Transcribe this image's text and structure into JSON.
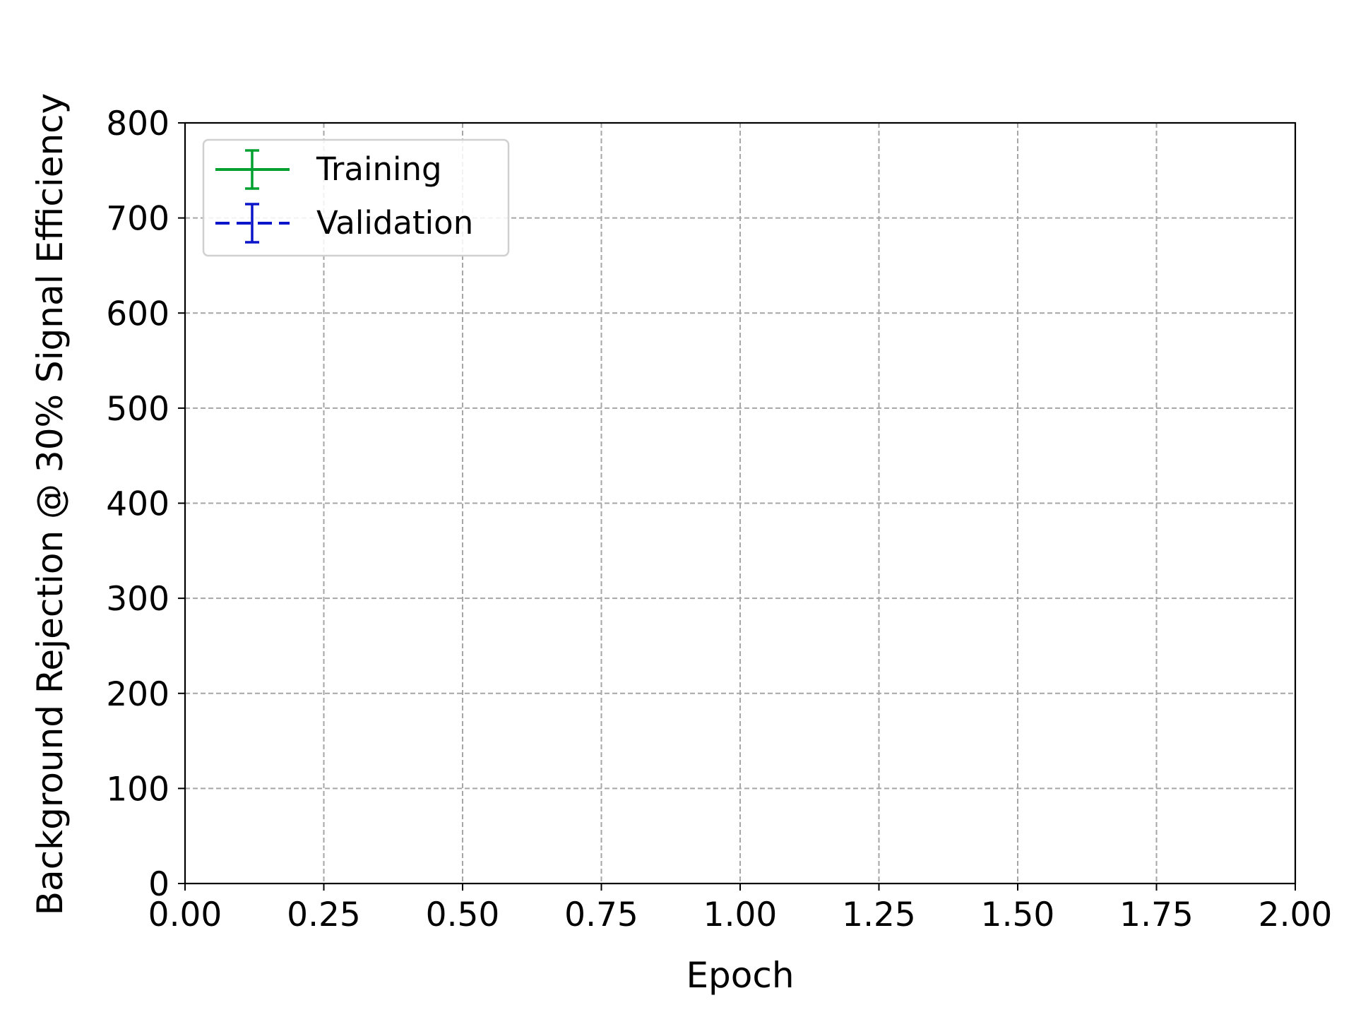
{
  "chart_data": {
    "type": "line",
    "title": "",
    "xlabel": "Epoch",
    "ylabel": "Background Rejection @ 30% Signal Efficiency",
    "xlim": [
      0,
      2
    ],
    "ylim": [
      0,
      800
    ],
    "x_ticks": [
      "0.00",
      "0.25",
      "0.50",
      "0.75",
      "1.00",
      "1.25",
      "1.50",
      "1.75",
      "2.00"
    ],
    "y_ticks": [
      "0",
      "100",
      "200",
      "300",
      "400",
      "500",
      "600",
      "700",
      "800"
    ],
    "grid": true,
    "legend_position": "top-left",
    "series": [
      {
        "name": "Training",
        "color": "#00a030",
        "line_style": "solid",
        "error_bars": true,
        "x": [],
        "y": [],
        "yerr": []
      },
      {
        "name": "Validation",
        "color": "#0a14c8",
        "line_style": "dashed",
        "error_bars": true,
        "x": [],
        "y": [],
        "yerr": []
      }
    ]
  }
}
